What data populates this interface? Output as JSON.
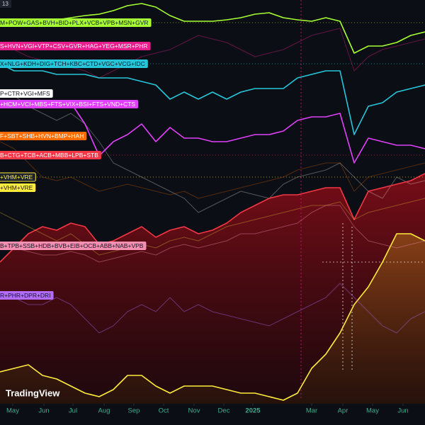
{
  "chart_data": {
    "type": "line",
    "header_label": "13",
    "brand": "TradingView",
    "xlim": [
      0,
      600
    ],
    "ylim": [
      0,
      570
    ],
    "x": [
      0,
      20,
      40,
      60,
      80,
      100,
      120,
      140,
      160,
      180,
      200,
      220,
      240,
      260,
      280,
      300,
      320,
      340,
      360,
      380,
      400,
      420,
      440,
      460,
      480,
      500,
      520,
      540,
      560,
      580,
      600
    ],
    "xticks": [
      {
        "value": 18,
        "label": "May"
      },
      {
        "value": 62,
        "label": "Jun"
      },
      {
        "value": 103,
        "label": "Jul"
      },
      {
        "value": 147,
        "label": "Aug"
      },
      {
        "value": 189,
        "label": "Sep"
      },
      {
        "value": 231,
        "label": "Oct"
      },
      {
        "value": 274,
        "label": "Nov"
      },
      {
        "value": 316,
        "label": "Dec"
      },
      {
        "value": 357,
        "label": "2025"
      },
      {
        "value": 440,
        "label": "Mar"
      },
      {
        "value": 484,
        "label": "Apr"
      },
      {
        "value": 526,
        "label": "May"
      },
      {
        "value": 569,
        "label": "Jun"
      }
    ],
    "series": [
      {
        "name": "M+POW+GAS+BVH+BID+PLX+VCB+VPB+MSN+GVR",
        "color": "#a6ff33",
        "opacity": 1,
        "values": [
          540,
          540,
          540,
          540,
          542,
          545,
          548,
          550,
          555,
          562,
          565,
          560,
          548,
          540,
          540,
          540,
          542,
          545,
          550,
          552,
          545,
          542,
          540,
          545,
          540,
          495,
          505,
          505,
          510,
          520,
          525
        ]
      },
      {
        "name": "S+HVN+VGI+VTP+CSV+GVR+HAG+YEG+MSR+PHR",
        "color": "#e91e8c",
        "opacity": 0.4,
        "values": [
          505,
          500,
          490,
          485,
          480,
          475,
          470,
          460,
          470,
          480,
          490,
          495,
          500,
          510,
          520,
          515,
          510,
          500,
          490,
          495,
          500,
          510,
          520,
          525,
          530,
          470,
          490,
          500,
          505,
          510,
          515
        ]
      },
      {
        "name": "X+NLG+KDH+DIG+TCH+KBC+CTD+VGC+VCG+IDC",
        "color": "#26c6da",
        "opacity": 1,
        "values": [
          480,
          470,
          470,
          470,
          465,
          465,
          465,
          460,
          460,
          460,
          455,
          450,
          430,
          440,
          430,
          440,
          430,
          440,
          445,
          445,
          445,
          460,
          465,
          470,
          470,
          380,
          420,
          425,
          440,
          445,
          450
        ]
      },
      {
        "name": "P+CTR+VGI+MFS",
        "color": "#ffffff",
        "opacity": 0.3,
        "values": [
          438,
          435,
          420,
          410,
          400,
          410,
          395,
          370,
          340,
          330,
          320,
          310,
          300,
          290,
          270,
          280,
          290,
          300,
          295,
          290,
          310,
          320,
          325,
          330,
          340,
          320,
          300,
          290,
          320,
          310,
          315
        ]
      },
      {
        "name": "+HCM+VCI+MBS+FTS+VIX+BSI+FTS+VND+CTS",
        "color": "#e040fb",
        "opacity": 1,
        "values": [
          425,
          425,
          425,
          420,
          425,
          425,
          395,
          350,
          370,
          380,
          395,
          370,
          390,
          375,
          375,
          370,
          370,
          375,
          380,
          380,
          385,
          400,
          405,
          405,
          410,
          340,
          375,
          370,
          365,
          365,
          360
        ]
      },
      {
        "name": "F+SBT+SHB+HVN+BMP+HAH",
        "color": "#ff6d00",
        "opacity": 0.3,
        "values": [
          370,
          360,
          340,
          320,
          315,
          320,
          310,
          300,
          305,
          310,
          305,
          300,
          295,
          300,
          290,
          295,
          300,
          305,
          310,
          315,
          320,
          330,
          335,
          340,
          340,
          300,
          320,
          325,
          330,
          335,
          340
        ]
      },
      {
        "name": "B+CTG+TCB+ACB+MBB+LPB+STB",
        "color": "#f23645",
        "opacity": 1,
        "area": true,
        "values": [
          200,
          220,
          240,
          250,
          245,
          255,
          250,
          225,
          230,
          240,
          250,
          235,
          245,
          250,
          240,
          245,
          255,
          270,
          280,
          290,
          295,
          295,
          300,
          305,
          305,
          260,
          300,
          305,
          310,
          315,
          325
        ]
      },
      {
        "name": "+VHM+VRE",
        "color": "#ffeb3b",
        "opacity": 0.3,
        "label_style": "outline",
        "values": [
          270,
          260,
          250,
          240,
          230,
          240,
          225,
          210,
          215,
          220,
          225,
          220,
          230,
          235,
          230,
          240,
          250,
          255,
          260,
          265,
          270,
          275,
          280,
          280,
          285,
          260,
          270,
          275,
          280,
          285,
          290
        ]
      },
      {
        "name": "+VHM+VRE",
        "color": "#ffeb3b",
        "opacity": 1,
        "area": true,
        "values": [
          45,
          50,
          55,
          40,
          35,
          25,
          15,
          10,
          20,
          40,
          40,
          25,
          15,
          25,
          25,
          25,
          20,
          15,
          15,
          10,
          5,
          15,
          50,
          70,
          100,
          140,
          165,
          200,
          240,
          240,
          230
        ]
      },
      {
        "name": "B+TPB+SSB+HDB+BVB+EIB+OCB+ABB+NAB+VPB",
        "color": "#f48fb1",
        "opacity": 0.4,
        "values": [
          220,
          220,
          215,
          210,
          210,
          215,
          210,
          200,
          205,
          210,
          215,
          210,
          220,
          225,
          220,
          225,
          230,
          240,
          240,
          245,
          250,
          255,
          270,
          280,
          280,
          250,
          230,
          225,
          220,
          225,
          230
        ]
      },
      {
        "name": "R+PHR+DPR+DRI",
        "color": "#b36bff",
        "opacity": 0.4,
        "values": [
          153,
          150,
          140,
          140,
          150,
          140,
          120,
          100,
          110,
          130,
          140,
          130,
          150,
          130,
          140,
          130,
          125,
          120,
          115,
          110,
          120,
          130,
          140,
          150,
          170,
          150,
          130,
          110,
          100,
          120,
          130
        ]
      }
    ]
  }
}
